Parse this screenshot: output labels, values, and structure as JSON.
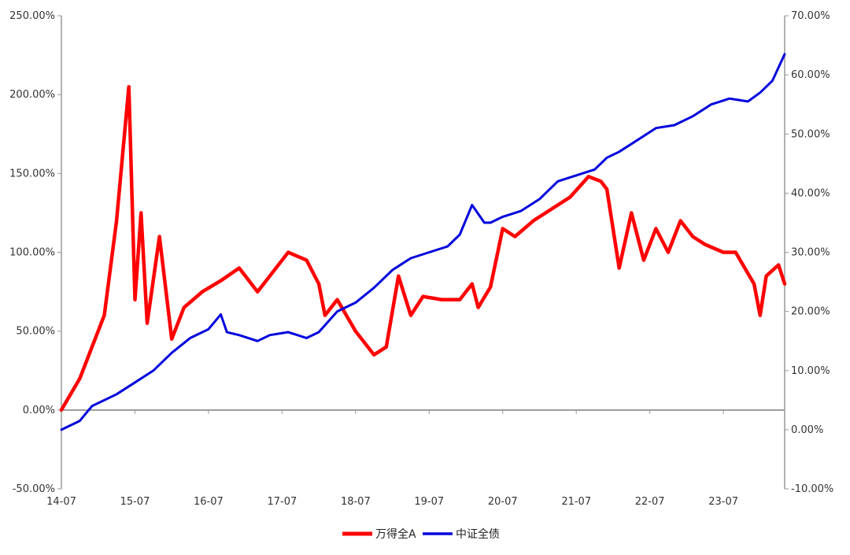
{
  "chart_data": {
    "type": "line",
    "title": "",
    "x_ticks": [
      "14-07",
      "15-07",
      "16-07",
      "17-07",
      "18-07",
      "19-07",
      "20-07",
      "21-07",
      "22-07",
      "23-07"
    ],
    "x_range": [
      "2014-07",
      "2024-05"
    ],
    "y_left": {
      "range": [
        -50,
        250
      ],
      "ticks": [
        "-50.00%",
        "0.00%",
        "50.00%",
        "100.00%",
        "150.00%",
        "200.00%",
        "250.00%"
      ]
    },
    "y_right": {
      "range": [
        -10,
        70
      ],
      "ticks": [
        "-10.00%",
        "0.00%",
        "10.00%",
        "20.00%",
        "30.00%",
        "40.00%",
        "50.00%",
        "60.00%",
        "70.00%"
      ]
    },
    "grid": false,
    "legend_position": "bottom-center",
    "series": [
      {
        "name": "万得全A",
        "axis": "left",
        "color": "#ff0000",
        "x": [
          "2014-07",
          "2014-10",
          "2014-12",
          "2015-02",
          "2015-04",
          "2015-06",
          "2015-07",
          "2015-08",
          "2015-09",
          "2015-11",
          "2016-01",
          "2016-03",
          "2016-06",
          "2016-09",
          "2016-12",
          "2017-03",
          "2017-05",
          "2017-08",
          "2017-11",
          "2018-01",
          "2018-02",
          "2018-04",
          "2018-07",
          "2018-10",
          "2018-12",
          "2019-02",
          "2019-04",
          "2019-06",
          "2019-09",
          "2019-12",
          "2020-02",
          "2020-03",
          "2020-05",
          "2020-07",
          "2020-09",
          "2020-12",
          "2021-02",
          "2021-04",
          "2021-06",
          "2021-09",
          "2021-11",
          "2021-12",
          "2022-02",
          "2022-04",
          "2022-06",
          "2022-08",
          "2022-10",
          "2022-12",
          "2023-02",
          "2023-04",
          "2023-07",
          "2023-09",
          "2023-12",
          "2024-01",
          "2024-02",
          "2024-04",
          "2024-05"
        ],
        "values": [
          0,
          20,
          40,
          60,
          120,
          205,
          70,
          125,
          55,
          110,
          45,
          65,
          75,
          82,
          90,
          75,
          85,
          100,
          95,
          80,
          60,
          70,
          50,
          35,
          40,
          85,
          60,
          72,
          70,
          70,
          80,
          65,
          78,
          115,
          110,
          120,
          125,
          130,
          135,
          148,
          145,
          140,
          90,
          125,
          95,
          115,
          100,
          120,
          110,
          105,
          100,
          100,
          80,
          60,
          85,
          92,
          80
        ]
      },
      {
        "name": "中证全债",
        "axis": "right",
        "color": "#0000dd",
        "x": [
          "2014-07",
          "2014-10",
          "2014-12",
          "2015-02",
          "2015-04",
          "2015-07",
          "2015-10",
          "2016-01",
          "2016-04",
          "2016-07",
          "2016-09",
          "2016-10",
          "2016-12",
          "2017-03",
          "2017-05",
          "2017-08",
          "2017-11",
          "2018-01",
          "2018-04",
          "2018-07",
          "2018-10",
          "2019-01",
          "2019-04",
          "2019-07",
          "2019-10",
          "2019-12",
          "2020-02",
          "2020-04",
          "2020-05",
          "2020-07",
          "2020-10",
          "2021-01",
          "2021-04",
          "2021-07",
          "2021-10",
          "2021-12",
          "2022-02",
          "2022-05",
          "2022-08",
          "2022-11",
          "2023-02",
          "2023-05",
          "2023-08",
          "2023-11",
          "2024-01",
          "2024-03",
          "2024-05"
        ],
        "values": [
          0,
          1.5,
          4,
          5,
          6,
          8,
          10,
          13,
          15.5,
          17,
          19.5,
          16.5,
          16,
          15,
          16,
          16.5,
          15.5,
          16.5,
          20,
          21.5,
          24,
          27,
          29,
          30,
          31,
          33,
          38,
          35,
          35,
          36,
          37,
          39,
          42,
          43,
          44,
          46,
          47,
          49,
          51,
          51.5,
          53,
          55,
          56,
          55.5,
          57,
          59,
          63.5
        ]
      }
    ]
  }
}
